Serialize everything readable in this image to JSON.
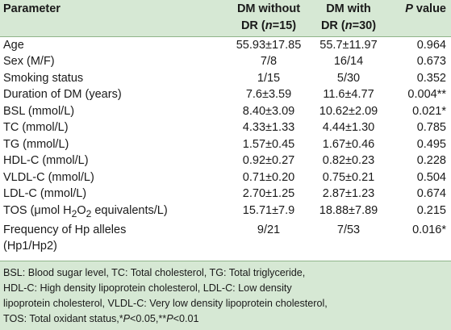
{
  "header": {
    "parameter": "Parameter",
    "dm_without_line1": "DM without",
    "dm_without_line2_pre": "DR (",
    "dm_without_n": "n",
    "dm_without_line2_post": "=15)",
    "dm_with_line1": "DM with",
    "dm_with_line2_pre": "DR (",
    "dm_with_n": "n",
    "dm_with_line2_post": "=30)",
    "pvalue_italic": "P",
    "pvalue_rest": " value"
  },
  "rows": [
    {
      "param": "Age",
      "without": "55.93±17.85",
      "with": "55.7±11.97",
      "p": "0.964"
    },
    {
      "param": "Sex (M/F)",
      "without": "7/8",
      "with": "16/14",
      "p": "0.673"
    },
    {
      "param": "Smoking status",
      "without": "1/15",
      "with": "5/30",
      "p": "0.352"
    },
    {
      "param": "Duration of DM (years)",
      "without": "7.6±3.59",
      "with": "11.6±4.77",
      "p": "0.004**"
    },
    {
      "param": "BSL (mmol/L)",
      "without": "8.40±3.09",
      "with": "10.62±2.09",
      "p": "0.021*"
    },
    {
      "param": "TC (mmol/L)",
      "without": "4.33±1.33",
      "with": "4.44±1.30",
      "p": "0.785"
    },
    {
      "param": "TG (mmol/L)",
      "without": "1.57±0.45",
      "with": "1.67±0.46",
      "p": "0.495"
    },
    {
      "param": "HDL-C (mmol/L)",
      "without": "0.92±0.27",
      "with": "0.82±0.23",
      "p": "0.228"
    },
    {
      "param": "VLDL-C (mmol/L)",
      "without": "0.71±0.20",
      "with": "0.75±0.21",
      "p": "0.504"
    },
    {
      "param": "LDL-C (mmol/L)",
      "without": "2.70±1.25",
      "with": "2.87±1.23",
      "p": "0.674"
    }
  ],
  "tos_row": {
    "param_pre": "TOS (μmol H",
    "sub1": "2",
    "param_mid": "O",
    "sub2": "2",
    "param_post": " equivalents/L)",
    "without": "15.71±7.9",
    "with": "18.88±7.89",
    "p": "0.215"
  },
  "hp_row": {
    "param_line1": "Frequency of Hp alleles",
    "param_line2": "(Hp1/Hp2)",
    "without": "9/21",
    "with": "7/53",
    "p": "0.016*"
  },
  "notes": {
    "line1": "BSL: Blood sugar level, TC: Total cholesterol, TG: Total triglyceride,",
    "line2": "HDL-C: High density lipoprotein cholesterol, LDL-C: Low density",
    "line3": "lipoprotein cholesterol, VLDL-C: Very low density lipoprotein cholesterol,",
    "line4_pre": "TOS: Total oxidant status,*",
    "line4_p1": "P",
    "line4_mid": "<0.05,**",
    "line4_p2": "P",
    "line4_post": "<0.01"
  }
}
